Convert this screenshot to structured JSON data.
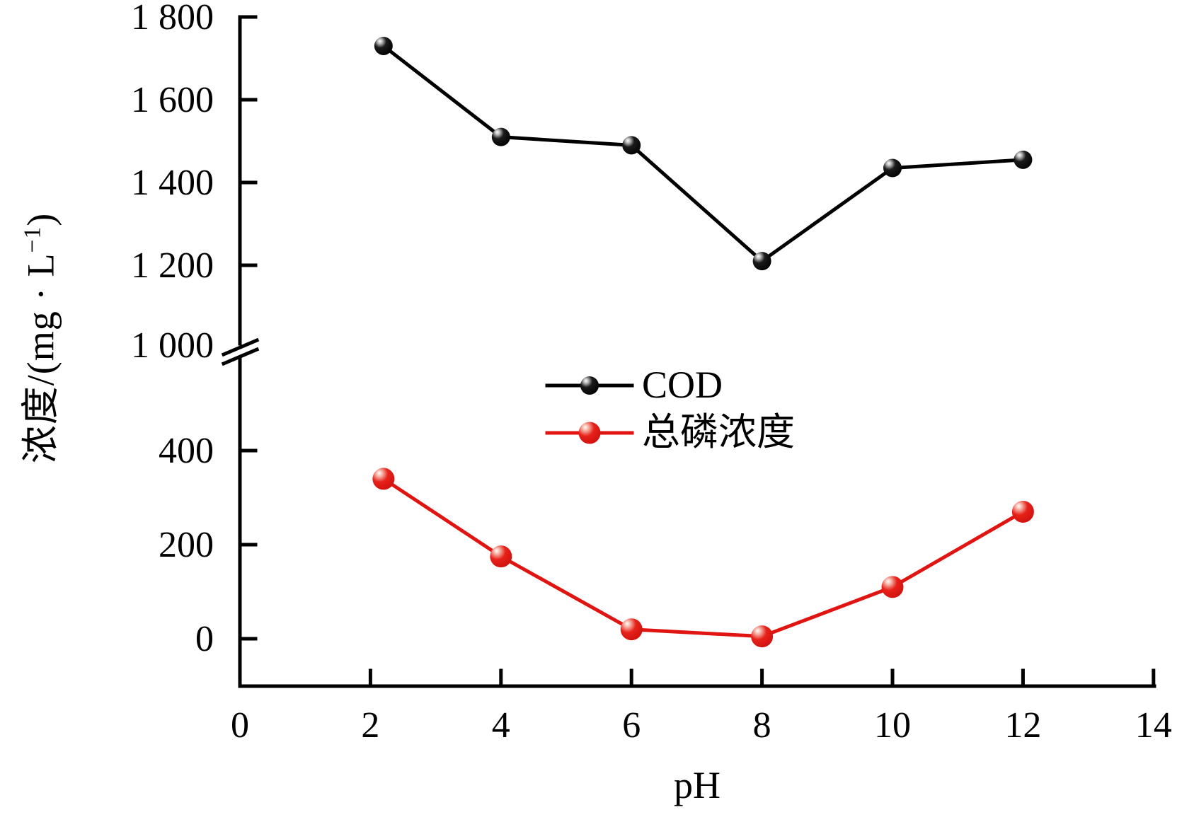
{
  "figure": {
    "background": "#ffffff",
    "text_color": "#000000"
  },
  "chart_data": {
    "type": "line",
    "title": "",
    "xlabel": "pH",
    "ylabel": {
      "base": "浓度/(mg · L",
      "sup": "−1",
      "close": ")",
      "full": "浓度/(mg·L⁻¹)"
    },
    "x_axis": {
      "range": [
        0,
        14
      ],
      "tick_values": [
        0,
        2,
        4,
        6,
        8,
        10,
        12,
        14
      ],
      "tick_labels": [
        "0",
        "2",
        "4",
        "6",
        "8",
        "10",
        "12",
        "14"
      ]
    },
    "y_axis": {
      "broken": true,
      "break_value": 1000,
      "break_label": "1 000",
      "upper_segment": {
        "range": [
          1000,
          1800
        ],
        "tick_values": [
          1800,
          1600,
          1400,
          1200
        ],
        "tick_labels": [
          "1 800",
          "1 600",
          "1 400",
          "1 200"
        ]
      },
      "lower_segment": {
        "range": [
          -100,
          590
        ],
        "tick_values": [
          400,
          200,
          0
        ],
        "tick_labels": [
          "400",
          "200",
          "0"
        ]
      }
    },
    "series": [
      {
        "name": "COD",
        "color": "#000000",
        "marker": "sphere",
        "marker_radius": 13,
        "x": [
          2.2,
          4,
          6,
          8,
          10,
          12
        ],
        "y": [
          1730,
          1510,
          1490,
          1210,
          1435,
          1455
        ]
      },
      {
        "name": "总磷浓度",
        "color": "#e01512",
        "marker": "sphere",
        "marker_radius": 15.5,
        "x": [
          2.2,
          4,
          6,
          8,
          10,
          12
        ],
        "y": [
          340,
          175,
          20,
          5,
          110,
          270
        ]
      }
    ],
    "legend": {
      "position": "inside-center",
      "entries": [
        "COD",
        "总磷浓度"
      ]
    },
    "grid": false
  }
}
